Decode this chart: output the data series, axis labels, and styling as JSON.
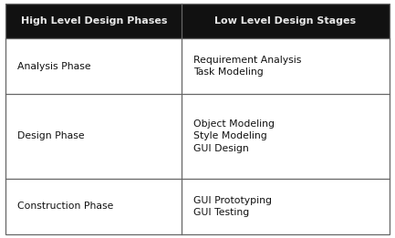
{
  "header": [
    "High Level Design Phases",
    "Low Level Design Stages"
  ],
  "rows": [
    {
      "left": "Analysis Phase",
      "right": "Requirement Analysis\nTask Modeling"
    },
    {
      "left": "Design Phase",
      "right": "Object Modeling\nStyle Modeling\nGUI Design"
    },
    {
      "left": "Construction Phase",
      "right": "GUI Prototyping\nGUI Testing"
    }
  ],
  "header_bg": "#111111",
  "header_text_color": "#e8e8e8",
  "body_bg": "#ffffff",
  "body_text_color": "#111111",
  "border_color": "#666666",
  "header_fontsize": 8.0,
  "body_fontsize": 7.8,
  "col_split": 0.46,
  "fig_width": 4.33,
  "fig_height": 2.61,
  "dpi": 100
}
